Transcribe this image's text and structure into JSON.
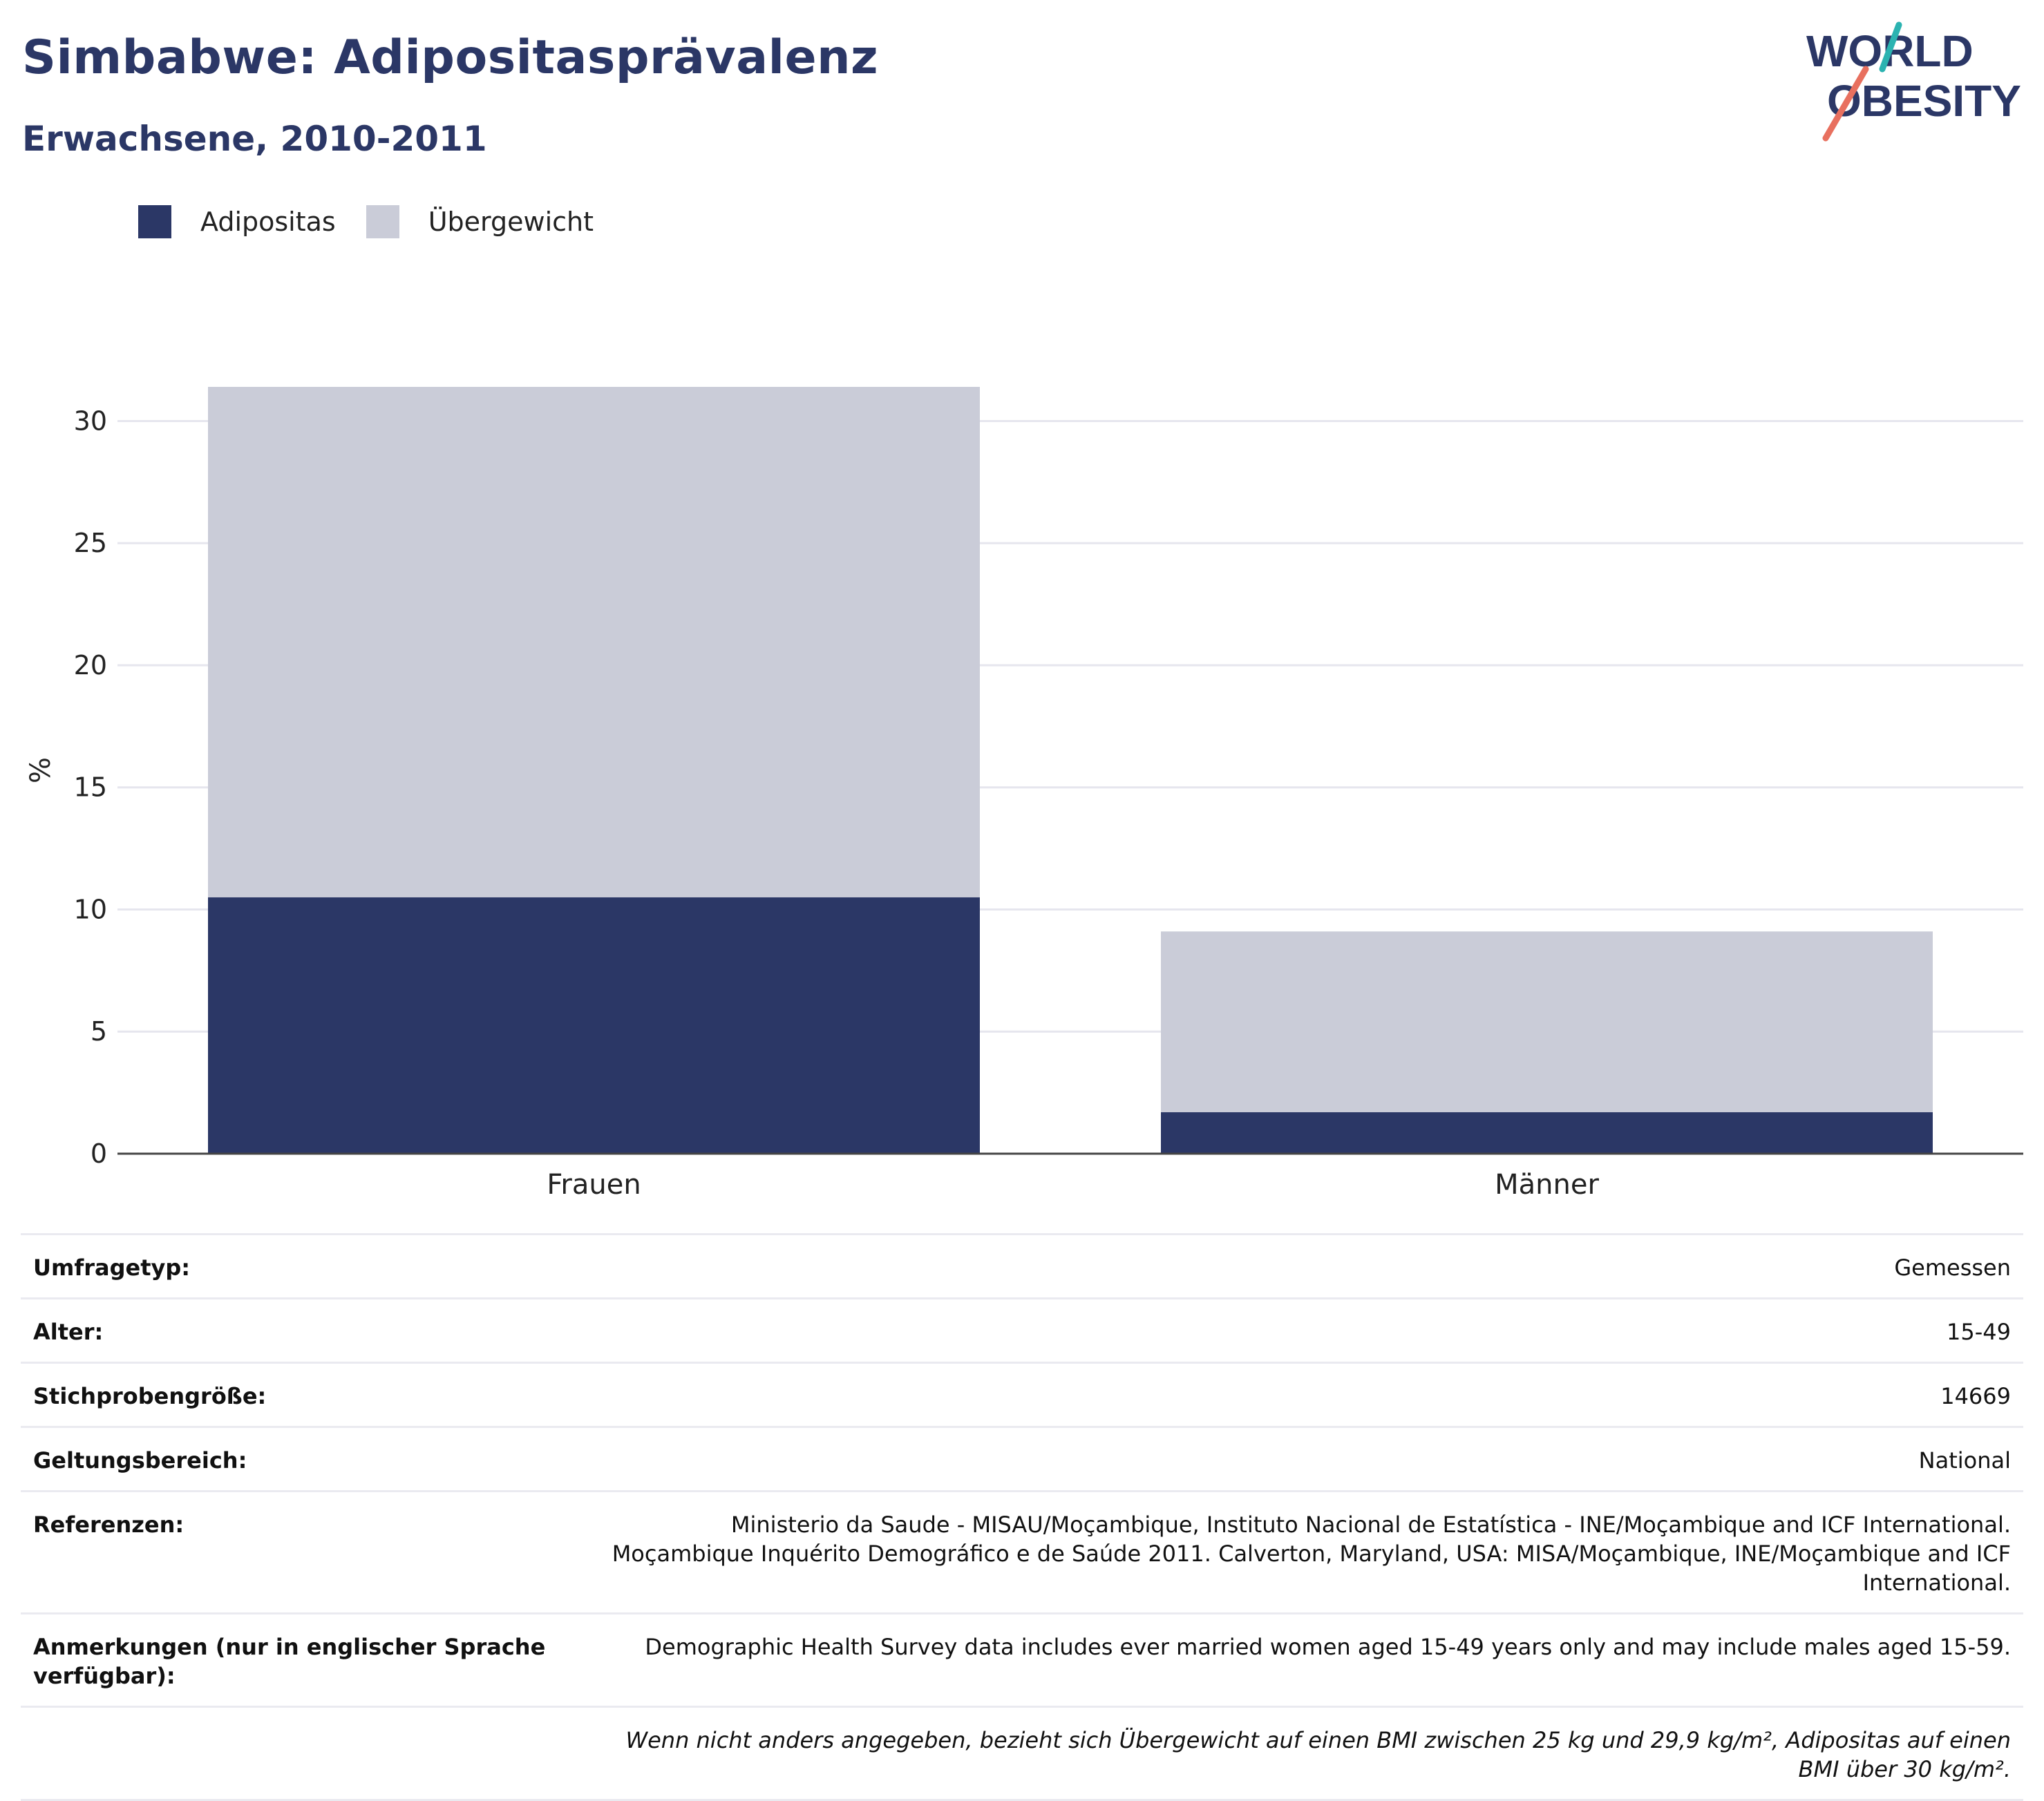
{
  "header": {
    "title": "Simbabwe: Adipositasprävalenz",
    "subtitle": "Erwachsene, 2010-2011"
  },
  "logo": {
    "line1": "WORLD",
    "line2": "OBESITY"
  },
  "legend": [
    {
      "label": "Adipositas",
      "color": "#2b3766"
    },
    {
      "label": "Übergewicht",
      "color": "#caccd8"
    }
  ],
  "chart_data": {
    "type": "bar",
    "stacked": true,
    "categories": [
      "Frauen",
      "Männer"
    ],
    "series": [
      {
        "name": "Adipositas",
        "values": [
          10.5,
          1.7
        ],
        "color": "#2b3766"
      },
      {
        "name": "Übergewicht",
        "values": [
          20.9,
          7.4
        ],
        "color": "#caccd8"
      }
    ],
    "ylabel": "%",
    "xlabel": "",
    "ylim": [
      0,
      31.4
    ],
    "yticks": [
      0,
      5,
      10,
      15,
      20,
      25,
      30
    ],
    "grid": true,
    "legend_position": "top-left"
  },
  "meta": {
    "survey_type": {
      "label": "Umfragetyp:",
      "value": "Gemessen"
    },
    "age": {
      "label": "Alter:",
      "value": "15-49"
    },
    "sample_size": {
      "label": "Stichprobengröße:",
      "value": "14669"
    },
    "scope": {
      "label": "Geltungsbereich:",
      "value": "National"
    },
    "references": {
      "label": "Referenzen:",
      "value": "Ministerio da Saude - MISAU/Moçambique, Instituto Nacional de Estatística - INE/Moçambique and ICF International. Moçambique Inquérito Demográfico e de Saúde 2011. Calverton, Maryland, USA: MISA/Moçambique, INE/Moçambique and ICF International."
    },
    "notes": {
      "label": "Anmerkungen (nur in englischer Sprache verfügbar):",
      "value": "Demographic Health Survey data includes ever married women aged 15-49 years only and may include males aged 15-59."
    },
    "footnote": "Wenn nicht anders angegeben, bezieht sich Übergewicht auf einen BMI zwischen 25 kg und 29,9 kg/m², Adipositas auf einen BMI über 30 kg/m²."
  }
}
